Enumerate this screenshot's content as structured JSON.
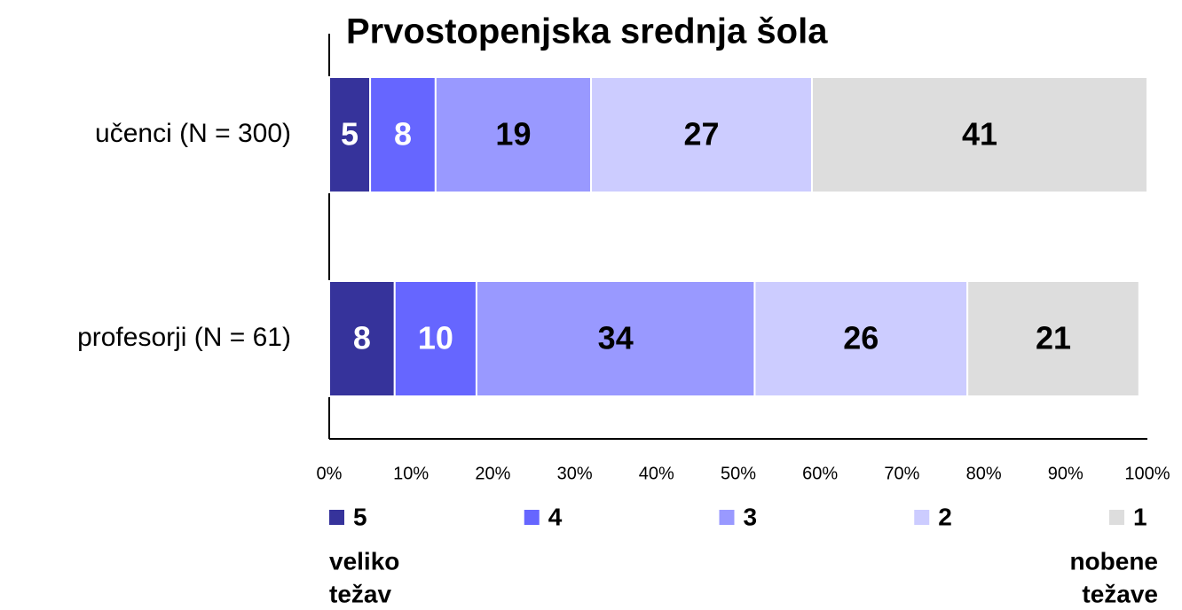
{
  "chart_data": {
    "type": "stacked_hbar",
    "title": "Prvostopenjska srednja šola",
    "categories": [
      "učenci (N = 300)",
      "profesorji (N = 61)"
    ],
    "series": [
      {
        "name": "5",
        "color": "#36339b",
        "label_color": "#ffffff",
        "values": [
          5,
          8
        ]
      },
      {
        "name": "4",
        "color": "#6666ff",
        "label_color": "#ffffff",
        "values": [
          8,
          10
        ]
      },
      {
        "name": "3",
        "color": "#9999ff",
        "label_color": "#000000",
        "values": [
          19,
          34
        ]
      },
      {
        "name": "2",
        "color": "#ccccff",
        "label_color": "#000000",
        "values": [
          27,
          26
        ]
      },
      {
        "name": "1",
        "color": "#dddddd",
        "label_color": "#000000",
        "values": [
          41,
          21
        ]
      }
    ],
    "xlim": [
      0,
      100
    ],
    "xticks": [
      {
        "value": 0,
        "label": "0%"
      },
      {
        "value": 10,
        "label": "10%"
      },
      {
        "value": 20,
        "label": "20%"
      },
      {
        "value": 30,
        "label": "30%"
      },
      {
        "value": 40,
        "label": "40%"
      },
      {
        "value": 50,
        "label": "50%"
      },
      {
        "value": 60,
        "label": "60%"
      },
      {
        "value": 70,
        "label": "70%"
      },
      {
        "value": 80,
        "label": "80%"
      },
      {
        "value": 90,
        "label": "90%"
      },
      {
        "value": 100,
        "label": "100%"
      }
    ],
    "legend_notes": [
      [
        "veliko",
        "težav"
      ],
      [
        "nobene",
        "težave"
      ]
    ]
  }
}
